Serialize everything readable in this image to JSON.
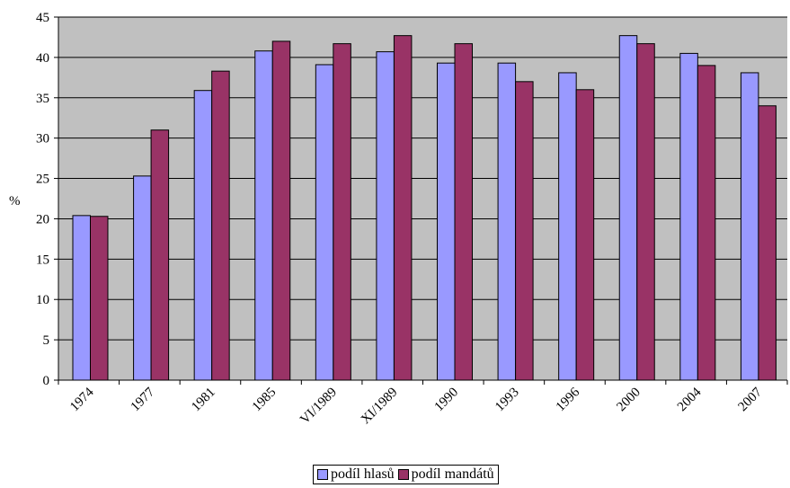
{
  "chart_data": {
    "type": "bar",
    "categories": [
      "1974",
      "1977",
      "1981",
      "1985",
      "VI/1989",
      "XI/1989",
      "1990",
      "1993",
      "1996",
      "2000",
      "2004",
      "2007"
    ],
    "series": [
      {
        "name": "podíl hlasů",
        "color": "#9999ff",
        "values": [
          20.4,
          25.3,
          35.9,
          40.8,
          39.1,
          40.7,
          39.3,
          39.3,
          38.1,
          42.7,
          40.5,
          38.1
        ]
      },
      {
        "name": "podíl mandátů",
        "color": "#993366",
        "values": [
          20.3,
          31.0,
          38.3,
          42.0,
          41.7,
          42.7,
          41.7,
          37.0,
          36.0,
          41.7,
          39.0,
          34.0
        ]
      }
    ],
    "title": "",
    "xlabel": "",
    "ylabel": "%",
    "ylim": [
      0,
      45
    ],
    "yticks": [
      0,
      5,
      10,
      15,
      20,
      25,
      30,
      35,
      40,
      45
    ],
    "grid": true,
    "legend": "bottom",
    "plot_background": "#c0c0c0"
  }
}
